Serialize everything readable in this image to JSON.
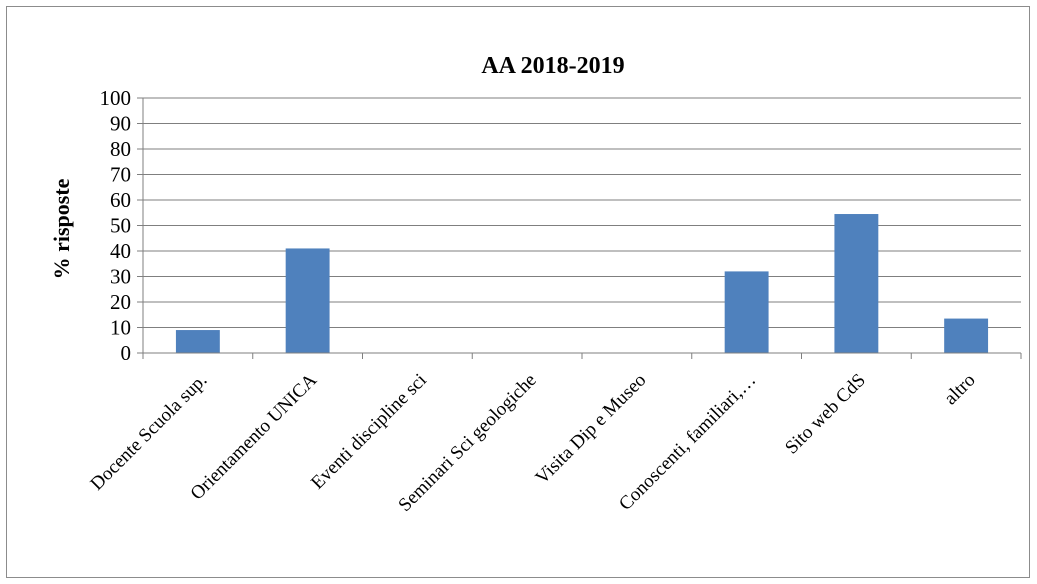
{
  "chart_data": {
    "type": "bar",
    "title": "AA 2018-2019",
    "xlabel": "",
    "ylabel": "% risposte",
    "ylim": [
      0,
      100
    ],
    "yticks": [
      0,
      10,
      20,
      30,
      40,
      50,
      60,
      70,
      80,
      90,
      100
    ],
    "grid": true,
    "legend": "none",
    "categories": [
      "Docente Scuola sup.",
      "Orientamento UNICA",
      "Eventi discipline sci",
      "Seminari Sci geologiche",
      "Visita Dip e Museo",
      "Conoscenti, familiari,…",
      "Sito web CdS",
      "altro"
    ],
    "values": [
      9,
      41,
      0,
      0,
      0,
      32,
      54.5,
      13.5
    ],
    "bar_color": "#4f81bd",
    "grid_color": "#7f7f7f"
  }
}
